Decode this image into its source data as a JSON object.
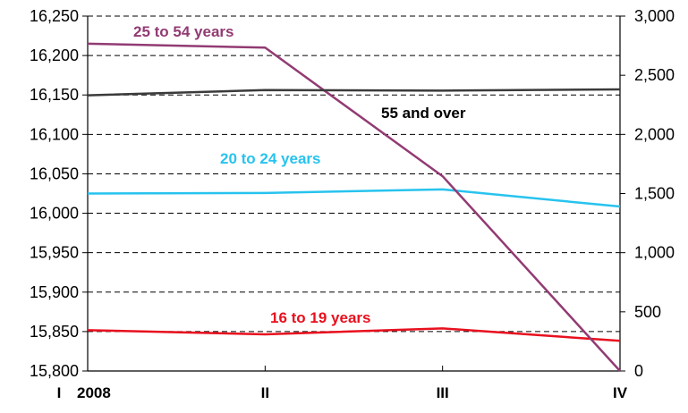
{
  "chart_data": {
    "type": "line",
    "title": "",
    "xlabel": "",
    "x": [
      "I",
      "II",
      "III",
      "IV"
    ],
    "x_year_label": "2008",
    "y_left": {
      "ylim": [
        15800,
        16250
      ],
      "ticks": [
        "15,800",
        "15,850",
        "15,900",
        "15,950",
        "16,000",
        "16,050",
        "16,100",
        "16,150",
        "16,200",
        "16,250"
      ],
      "tick_values": [
        15800,
        15850,
        15900,
        15950,
        16000,
        16050,
        16100,
        16150,
        16200,
        16250
      ]
    },
    "y_right": {
      "ylim": [
        0,
        3000
      ],
      "ticks": [
        "0",
        "500",
        "1,000",
        "1,500",
        "2,000",
        "2,500",
        "3,000"
      ],
      "tick_values": [
        0,
        500,
        1000,
        1500,
        2000,
        2500,
        3000
      ]
    },
    "grid": "dashed horizontal",
    "series": [
      {
        "name": "16 to 19 years",
        "axis": "right",
        "color": "#e8101e",
        "values": [
          345,
          310,
          360,
          255
        ]
      },
      {
        "name": "20 to 24 years",
        "axis": "right",
        "color": "#27c3ee",
        "values": [
          1500,
          1505,
          1535,
          1390
        ]
      },
      {
        "name": "25 to 54 years",
        "axis": "left",
        "color": "#923b73",
        "values": [
          16215,
          16210,
          16047,
          15800
        ]
      },
      {
        "name": "55 and over",
        "axis": "right",
        "color": "#3b3b3b",
        "values": [
          2330,
          2375,
          2370,
          2380
        ]
      }
    ]
  }
}
